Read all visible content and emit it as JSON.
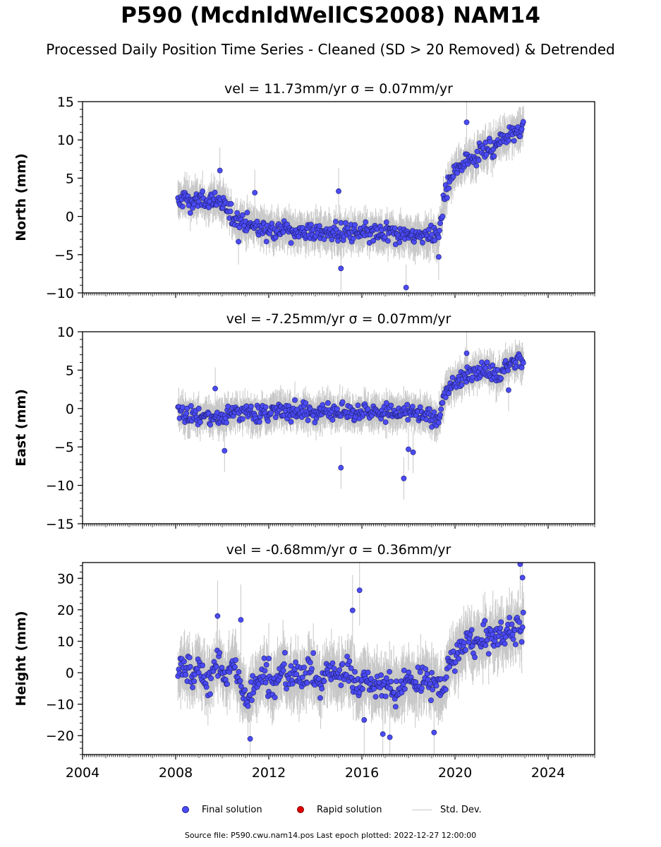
{
  "title": "P590 (McdnldWellCS2008) NAM14",
  "subtitle": "Processed Daily Position Time Series - Cleaned (SD > 20 Removed) & Detrended",
  "legend": {
    "final_label": "Final solution",
    "rapid_label": "Rapid solution",
    "std_label": "Std. Dev."
  },
  "source": "Source file: P590.cwu.nam14.pos  Last epoch plotted: 2022-12-27 12:00:00",
  "colors": {
    "final": "#4b4bf5",
    "rapid": "#e00000",
    "std": "#9a9a9a"
  },
  "chart_data": [
    {
      "type": "scatter",
      "title": "vel = 11.73mm/yr   σ = 0.07mm/yr",
      "ylabel": "North (mm)",
      "xlim": [
        2004,
        2026
      ],
      "ylim": [
        -10,
        15
      ],
      "yticks": [
        "−10",
        "−5",
        "0",
        "5",
        "10",
        "15"
      ],
      "series": [
        {
          "values": [
            [
              2008.1,
              1.8
            ],
            [
              2008.4,
              2.5
            ],
            [
              2008.7,
              1.9
            ],
            [
              2009.0,
              2.2
            ],
            [
              2009.3,
              1.6
            ],
            [
              2009.6,
              2.4
            ],
            [
              2009.9,
              2.0
            ],
            [
              2010.2,
              1.0
            ],
            [
              2010.5,
              -0.3
            ],
            [
              2010.8,
              -0.8
            ],
            [
              2011.1,
              -1.0
            ],
            [
              2011.5,
              -1.3
            ],
            [
              2012.0,
              -1.6
            ],
            [
              2012.5,
              -1.8
            ],
            [
              2013.0,
              -1.9
            ],
            [
              2013.5,
              -2.0
            ],
            [
              2014.0,
              -2.0
            ],
            [
              2014.5,
              -2.1
            ],
            [
              2015.0,
              -2.1
            ],
            [
              2015.5,
              -2.2
            ],
            [
              2016.0,
              -2.2
            ],
            [
              2016.5,
              -2.3
            ],
            [
              2017.0,
              -2.4
            ],
            [
              2017.5,
              -2.4
            ],
            [
              2018.0,
              -2.5
            ],
            [
              2018.5,
              -2.5
            ],
            [
              2019.0,
              -2.6
            ],
            [
              2019.3,
              -2.6
            ],
            [
              2019.5,
              1.5
            ],
            [
              2019.7,
              4.0
            ],
            [
              2020.0,
              5.8
            ],
            [
              2020.3,
              6.8
            ],
            [
              2020.6,
              7.6
            ],
            [
              2021.0,
              8.2
            ],
            [
              2021.4,
              8.8
            ],
            [
              2021.8,
              9.6
            ],
            [
              2022.2,
              10.5
            ],
            [
              2022.6,
              11.2
            ],
            [
              2022.95,
              11.8
            ]
          ]
        }
      ],
      "outliers": [
        [
          2009.9,
          6.0
        ],
        [
          2010.7,
          -3.3
        ],
        [
          2011.4,
          3.1
        ],
        [
          2015.0,
          3.3
        ],
        [
          2015.1,
          -6.8
        ],
        [
          2017.9,
          -9.3
        ],
        [
          2020.5,
          12.3
        ],
        [
          2019.3,
          -5.3
        ]
      ]
    },
    {
      "type": "scatter",
      "title": "vel = -7.25mm/yr   σ = 0.07mm/yr",
      "ylabel": "East (mm)",
      "xlim": [
        2004,
        2026
      ],
      "ylim": [
        -15,
        10
      ],
      "yticks": [
        "−15",
        "−10",
        "−5",
        "0",
        "5",
        "10"
      ],
      "series": [
        {
          "values": [
            [
              2008.1,
              -0.5
            ],
            [
              2008.5,
              -0.8
            ],
            [
              2009.0,
              -1.0
            ],
            [
              2009.5,
              -1.2
            ],
            [
              2010.0,
              -0.9
            ],
            [
              2010.5,
              -0.6
            ],
            [
              2011.0,
              -0.5
            ],
            [
              2011.5,
              -0.8
            ],
            [
              2012.0,
              -0.6
            ],
            [
              2012.5,
              -0.3
            ],
            [
              2013.0,
              -0.2
            ],
            [
              2013.5,
              -0.4
            ],
            [
              2014.0,
              -0.6
            ],
            [
              2014.5,
              -0.3
            ],
            [
              2015.0,
              -0.2
            ],
            [
              2015.5,
              -0.5
            ],
            [
              2016.0,
              -0.3
            ],
            [
              2016.5,
              -0.5
            ],
            [
              2017.0,
              -0.4
            ],
            [
              2017.5,
              -0.6
            ],
            [
              2018.0,
              -0.5
            ],
            [
              2018.5,
              -0.8
            ],
            [
              2019.0,
              -1.0
            ],
            [
              2019.3,
              -1.5
            ],
            [
              2019.5,
              1.5
            ],
            [
              2019.8,
              2.8
            ],
            [
              2020.2,
              3.8
            ],
            [
              2020.6,
              4.5
            ],
            [
              2021.0,
              5.0
            ],
            [
              2021.4,
              5.2
            ],
            [
              2021.8,
              4.0
            ],
            [
              2022.2,
              5.5
            ],
            [
              2022.6,
              6.0
            ],
            [
              2022.95,
              6.2
            ]
          ]
        }
      ],
      "outliers": [
        [
          2015.1,
          -7.7
        ],
        [
          2017.8,
          -9.1
        ],
        [
          2018.0,
          -5.3
        ],
        [
          2018.2,
          -5.7
        ],
        [
          2009.7,
          2.6
        ],
        [
          2010.1,
          -5.5
        ],
        [
          2020.5,
          7.2
        ],
        [
          2022.3,
          2.4
        ]
      ]
    },
    {
      "type": "scatter",
      "title": "vel = -0.68mm/yr   σ = 0.36mm/yr",
      "ylabel": "Height (mm)",
      "xlim": [
        2004,
        2026
      ],
      "ylim": [
        -26,
        35
      ],
      "yticks": [
        "−20",
        "−10",
        "0",
        "10",
        "20",
        "30"
      ],
      "xticks": [
        "2004",
        "2008",
        "2012",
        "2016",
        "2020",
        "2024"
      ],
      "series": [
        {
          "values": [
            [
              2008.1,
              -2.0
            ],
            [
              2008.4,
              3.0
            ],
            [
              2008.7,
              -1.0
            ],
            [
              2009.0,
              2.0
            ],
            [
              2009.3,
              -3.0
            ],
            [
              2009.6,
              0.0
            ],
            [
              2009.9,
              3.0
            ],
            [
              2010.2,
              -2.0
            ],
            [
              2010.5,
              4.0
            ],
            [
              2010.8,
              -5.0
            ],
            [
              2011.1,
              -8.0
            ],
            [
              2011.4,
              -3.0
            ],
            [
              2011.8,
              0.0
            ],
            [
              2012.2,
              -5.0
            ],
            [
              2012.6,
              2.0
            ],
            [
              2013.0,
              -3.0
            ],
            [
              2013.4,
              -1.0
            ],
            [
              2013.8,
              2.0
            ],
            [
              2014.2,
              -4.0
            ],
            [
              2014.6,
              1.0
            ],
            [
              2015.0,
              -2.0
            ],
            [
              2015.4,
              2.0
            ],
            [
              2015.8,
              -4.0
            ],
            [
              2016.2,
              -1.0
            ],
            [
              2016.6,
              -5.0
            ],
            [
              2017.0,
              -3.0
            ],
            [
              2017.4,
              -6.0
            ],
            [
              2017.8,
              -2.0
            ],
            [
              2018.2,
              -4.0
            ],
            [
              2018.6,
              -1.0
            ],
            [
              2019.0,
              -3.0
            ],
            [
              2019.4,
              -6.0
            ],
            [
              2019.8,
              3.0
            ],
            [
              2020.2,
              7.0
            ],
            [
              2020.6,
              10.0
            ],
            [
              2021.0,
              9.0
            ],
            [
              2021.4,
              11.0
            ],
            [
              2021.8,
              12.0
            ],
            [
              2022.2,
              13.0
            ],
            [
              2022.6,
              14.0
            ],
            [
              2022.95,
              15.0
            ]
          ]
        }
      ],
      "outliers": [
        [
          2009.8,
          18.0
        ],
        [
          2010.8,
          16.8
        ],
        [
          2015.6,
          19.8
        ],
        [
          2015.9,
          26.2
        ],
        [
          2022.8,
          34.5
        ],
        [
          2022.9,
          30.2
        ],
        [
          2011.2,
          -21.0
        ],
        [
          2016.1,
          -15.0
        ],
        [
          2016.9,
          -19.5
        ],
        [
          2017.2,
          -20.5
        ],
        [
          2019.1,
          -19.0
        ],
        [
          2012.0,
          4.5
        ]
      ]
    }
  ]
}
